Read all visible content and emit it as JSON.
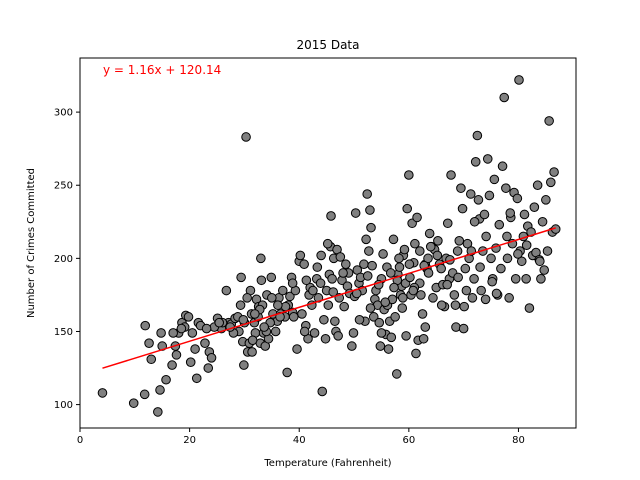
{
  "chart_data": {
    "type": "scatter",
    "title": "2015 Data",
    "xlabel": "Temperature (Fahrenheit)",
    "ylabel": "Number of Crimes Committed",
    "xlim": [
      0,
      90.5
    ],
    "ylim": [
      84,
      337
    ],
    "xticks": [
      0,
      20,
      40,
      60,
      80
    ],
    "yticks": [
      100,
      150,
      200,
      250,
      300
    ],
    "grid": false,
    "marker_color": "#808080",
    "marker_edge_color": "#000000",
    "annotation": {
      "text": "y = 1.16x + 120.14",
      "color": "#ff0000",
      "x": 4,
      "y": 323
    },
    "regression": {
      "slope": 1.16,
      "intercept": 120.14,
      "x_range": [
        4.1,
        86.8
      ],
      "color": "#ff0000"
    },
    "points": [
      [
        4.1,
        108
      ],
      [
        9.8,
        101
      ],
      [
        11.8,
        107
      ],
      [
        11.9,
        154
      ],
      [
        12.6,
        142
      ],
      [
        14.2,
        95
      ],
      [
        14.6,
        110
      ],
      [
        14.8,
        149
      ],
      [
        15.7,
        117
      ],
      [
        16.8,
        127
      ],
      [
        17.4,
        140
      ],
      [
        17.6,
        134
      ],
      [
        18.0,
        149
      ],
      [
        18.6,
        156
      ],
      [
        19.1,
        153
      ],
      [
        19.3,
        161
      ],
      [
        19.8,
        160
      ],
      [
        20.2,
        129
      ],
      [
        21.0,
        138
      ],
      [
        21.3,
        118
      ],
      [
        21.6,
        156
      ],
      [
        22.8,
        142
      ],
      [
        23.4,
        125
      ],
      [
        23.6,
        136
      ],
      [
        24.0,
        132
      ],
      [
        25.1,
        159
      ],
      [
        25.8,
        152
      ],
      [
        26.7,
        178
      ],
      [
        27.1,
        156
      ],
      [
        27.6,
        155
      ],
      [
        28.3,
        159
      ],
      [
        28.8,
        160
      ],
      [
        29.0,
        150
      ],
      [
        29.3,
        168
      ],
      [
        29.4,
        187
      ],
      [
        29.7,
        143
      ],
      [
        29.9,
        127
      ],
      [
        30.0,
        156
      ],
      [
        30.3,
        283
      ],
      [
        30.6,
        136
      ],
      [
        30.9,
        142
      ],
      [
        31.1,
        178
      ],
      [
        31.3,
        162
      ],
      [
        31.4,
        136
      ],
      [
        31.8,
        156
      ],
      [
        32.0,
        149
      ],
      [
        32.2,
        172
      ],
      [
        32.5,
        160
      ],
      [
        32.6,
        167
      ],
      [
        32.9,
        142
      ],
      [
        33.0,
        200
      ],
      [
        33.1,
        185
      ],
      [
        33.3,
        168
      ],
      [
        33.5,
        149
      ],
      [
        33.8,
        140
      ],
      [
        34.1,
        175
      ],
      [
        34.4,
        145
      ],
      [
        34.9,
        187
      ],
      [
        35.2,
        162
      ],
      [
        35.7,
        150
      ],
      [
        36.0,
        157
      ],
      [
        36.3,
        173
      ],
      [
        36.6,
        162
      ],
      [
        37.0,
        178
      ],
      [
        37.4,
        160
      ],
      [
        37.8,
        122
      ],
      [
        38.0,
        168
      ],
      [
        38.3,
        174
      ],
      [
        38.6,
        187
      ],
      [
        38.8,
        163
      ],
      [
        39.3,
        178
      ],
      [
        39.6,
        138
      ],
      [
        40.0,
        198
      ],
      [
        40.2,
        202
      ],
      [
        40.5,
        162
      ],
      [
        40.9,
        196
      ],
      [
        41.2,
        154
      ],
      [
        41.6,
        145
      ],
      [
        41.8,
        175
      ],
      [
        42.0,
        180
      ],
      [
        42.3,
        168
      ],
      [
        42.8,
        149
      ],
      [
        43.2,
        186
      ],
      [
        43.5,
        173
      ],
      [
        43.9,
        183
      ],
      [
        44.2,
        109
      ],
      [
        44.5,
        158
      ],
      [
        44.8,
        145
      ],
      [
        45.0,
        178
      ],
      [
        45.3,
        168
      ],
      [
        45.5,
        189
      ],
      [
        45.7,
        208
      ],
      [
        45.8,
        229
      ],
      [
        46.0,
        186
      ],
      [
        46.3,
        200
      ],
      [
        46.5,
        157
      ],
      [
        46.7,
        150
      ],
      [
        46.9,
        206
      ],
      [
        47.1,
        147
      ],
      [
        47.3,
        173
      ],
      [
        47.8,
        185
      ],
      [
        48.2,
        167
      ],
      [
        48.5,
        196
      ],
      [
        48.8,
        181
      ],
      [
        49.2,
        176
      ],
      [
        49.6,
        140
      ],
      [
        49.9,
        149
      ],
      [
        50.1,
        174
      ],
      [
        50.3,
        231
      ],
      [
        50.6,
        192
      ],
      [
        50.9,
        183
      ],
      [
        51.2,
        187
      ],
      [
        51.5,
        178
      ],
      [
        51.8,
        196
      ],
      [
        52.0,
        157
      ],
      [
        52.2,
        213
      ],
      [
        52.4,
        244
      ],
      [
        52.7,
        205
      ],
      [
        52.9,
        233
      ],
      [
        53.1,
        221
      ],
      [
        53.3,
        195
      ],
      [
        53.6,
        160
      ],
      [
        53.8,
        172
      ],
      [
        54.0,
        178
      ],
      [
        54.3,
        168
      ],
      [
        54.6,
        156
      ],
      [
        54.8,
        140
      ],
      [
        55.0,
        186
      ],
      [
        55.3,
        203
      ],
      [
        55.5,
        165
      ],
      [
        55.8,
        148
      ],
      [
        56.1,
        168
      ],
      [
        56.3,
        138
      ],
      [
        56.5,
        157
      ],
      [
        56.8,
        146
      ],
      [
        57.0,
        172
      ],
      [
        57.2,
        213
      ],
      [
        57.5,
        160
      ],
      [
        57.8,
        121
      ],
      [
        58.0,
        189
      ],
      [
        58.3,
        194
      ],
      [
        58.5,
        175
      ],
      [
        58.7,
        181
      ],
      [
        59.0,
        202
      ],
      [
        59.2,
        206
      ],
      [
        59.4,
        183
      ],
      [
        59.7,
        234
      ],
      [
        60.0,
        257
      ],
      [
        60.2,
        187
      ],
      [
        60.4,
        175
      ],
      [
        60.6,
        224
      ],
      [
        60.9,
        197
      ],
      [
        61.1,
        210
      ],
      [
        61.3,
        135
      ],
      [
        61.5,
        228
      ],
      [
        61.7,
        144
      ],
      [
        62.0,
        183
      ],
      [
        62.2,
        175
      ],
      [
        62.5,
        162
      ],
      [
        62.7,
        145
      ],
      [
        63.0,
        196
      ],
      [
        63.3,
        193
      ],
      [
        63.5,
        200
      ],
      [
        63.8,
        217
      ],
      [
        64.1,
        208
      ],
      [
        64.4,
        173
      ],
      [
        64.7,
        206
      ],
      [
        65.0,
        180
      ],
      [
        65.3,
        212
      ],
      [
        65.6,
        196
      ],
      [
        65.9,
        193
      ],
      [
        66.2,
        182
      ],
      [
        66.5,
        167
      ],
      [
        66.8,
        200
      ],
      [
        67.1,
        224
      ],
      [
        67.4,
        186
      ],
      [
        67.7,
        257
      ],
      [
        68.0,
        190
      ],
      [
        68.3,
        175
      ],
      [
        68.6,
        153
      ],
      [
        68.9,
        205
      ],
      [
        69.2,
        212
      ],
      [
        69.5,
        248
      ],
      [
        69.8,
        234
      ],
      [
        70.1,
        167
      ],
      [
        70.3,
        193
      ],
      [
        70.5,
        178
      ],
      [
        70.7,
        210
      ],
      [
        71.0,
        200
      ],
      [
        71.3,
        244
      ],
      [
        71.6,
        173
      ],
      [
        71.9,
        186
      ],
      [
        72.2,
        266
      ],
      [
        72.5,
        284
      ],
      [
        72.7,
        240
      ],
      [
        72.9,
        227
      ],
      [
        73.2,
        178
      ],
      [
        73.5,
        205
      ],
      [
        73.8,
        230
      ],
      [
        74.1,
        215
      ],
      [
        74.4,
        268
      ],
      [
        74.7,
        243
      ],
      [
        75.0,
        200
      ],
      [
        75.3,
        186
      ],
      [
        75.6,
        254
      ],
      [
        75.9,
        207
      ],
      [
        76.2,
        175
      ],
      [
        76.5,
        223
      ],
      [
        76.8,
        193
      ],
      [
        77.1,
        263
      ],
      [
        77.4,
        310
      ],
      [
        77.7,
        248
      ],
      [
        78.0,
        200
      ],
      [
        78.3,
        173
      ],
      [
        78.6,
        228
      ],
      [
        78.9,
        210
      ],
      [
        79.2,
        245
      ],
      [
        79.5,
        186
      ],
      [
        79.8,
        241
      ],
      [
        80.1,
        322
      ],
      [
        80.3,
        205
      ],
      [
        80.6,
        198
      ],
      [
        80.9,
        215
      ],
      [
        81.1,
        230
      ],
      [
        81.4,
        186
      ],
      [
        81.7,
        222
      ],
      [
        82.0,
        166
      ],
      [
        82.3,
        218
      ],
      [
        82.6,
        202
      ],
      [
        82.9,
        235
      ],
      [
        83.2,
        204
      ],
      [
        83.5,
        250
      ],
      [
        83.8,
        199
      ],
      [
        84.1,
        186
      ],
      [
        84.4,
        225
      ],
      [
        84.7,
        192
      ],
      [
        85.0,
        240
      ],
      [
        85.3,
        205
      ],
      [
        85.6,
        294
      ],
      [
        85.9,
        252
      ],
      [
        86.2,
        218
      ],
      [
        86.5,
        259
      ],
      [
        86.8,
        220
      ],
      [
        78.5,
        231
      ],
      [
        76.0,
        176
      ],
      [
        74.0,
        172
      ],
      [
        72.0,
        225
      ],
      [
        70.0,
        152
      ],
      [
        68.5,
        168
      ],
      [
        67.0,
        182
      ],
      [
        66.0,
        168
      ],
      [
        64.0,
        208
      ],
      [
        63.0,
        153
      ],
      [
        61.0,
        180
      ],
      [
        59.5,
        147
      ],
      [
        58.8,
        166
      ],
      [
        57.9,
        185
      ],
      [
        56.0,
        194
      ],
      [
        55.0,
        149
      ],
      [
        53.0,
        166
      ],
      [
        51.0,
        158
      ],
      [
        49.0,
        190
      ],
      [
        47.5,
        201
      ],
      [
        46.2,
        177
      ],
      [
        44.0,
        202
      ],
      [
        42.5,
        178
      ],
      [
        41.0,
        150
      ],
      [
        39.0,
        160
      ],
      [
        37.5,
        167
      ],
      [
        36.5,
        160
      ],
      [
        35.0,
        173
      ],
      [
        34.0,
        150
      ],
      [
        32.8,
        165
      ],
      [
        31.5,
        144
      ],
      [
        30.5,
        173
      ],
      [
        28.0,
        149
      ],
      [
        26.0,
        156
      ],
      [
        24.5,
        153
      ],
      [
        22.0,
        154
      ],
      [
        20.5,
        149
      ],
      [
        18.5,
        152
      ],
      [
        17.0,
        149
      ],
      [
        15.0,
        140
      ],
      [
        13.0,
        131
      ],
      [
        73.0,
        194
      ],
      [
        75.2,
        184
      ],
      [
        77.9,
        215
      ],
      [
        79.9,
        203
      ],
      [
        81.5,
        209
      ],
      [
        83.9,
        198
      ],
      [
        62.8,
        195
      ],
      [
        60.8,
        178
      ],
      [
        58.2,
        200
      ],
      [
        56.7,
        190
      ],
      [
        54.5,
        182
      ],
      [
        52.5,
        188
      ],
      [
        50.5,
        176
      ],
      [
        48.0,
        190
      ],
      [
        45.2,
        210
      ],
      [
        43.3,
        194
      ],
      [
        41.3,
        185
      ],
      [
        38.8,
        183
      ],
      [
        36.1,
        168
      ],
      [
        34.7,
        156
      ],
      [
        33.6,
        153
      ],
      [
        31.9,
        162
      ],
      [
        29.8,
        158
      ],
      [
        27.4,
        153
      ],
      [
        25.4,
        156
      ],
      [
        23.1,
        152
      ],
      [
        71.4,
        205
      ],
      [
        69.0,
        187
      ],
      [
        67.5,
        199
      ],
      [
        65.2,
        202
      ],
      [
        63.6,
        190
      ],
      [
        62.0,
        205
      ],
      [
        60.1,
        196
      ],
      [
        58.9,
        173
      ],
      [
        57.3,
        180
      ],
      [
        55.7,
        170
      ]
    ]
  }
}
